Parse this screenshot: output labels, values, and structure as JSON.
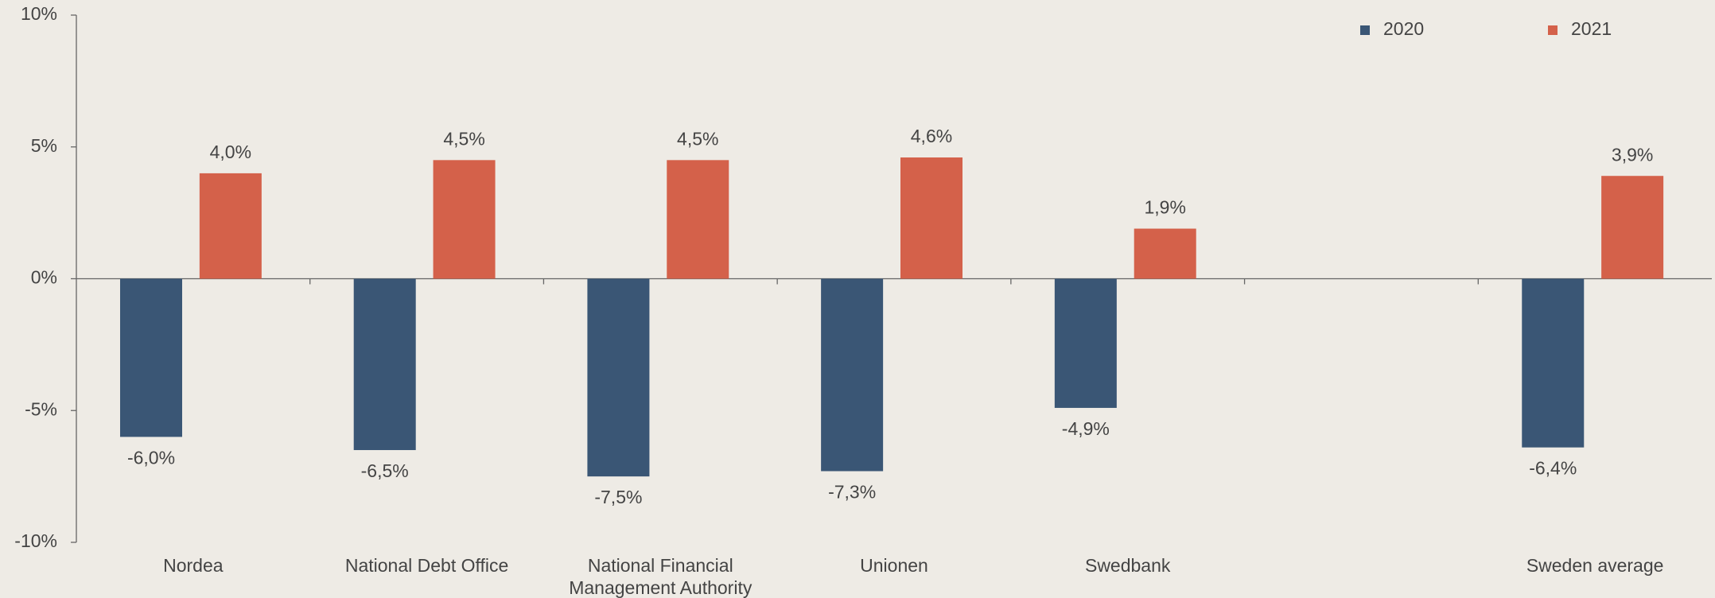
{
  "chart_data": {
    "type": "bar",
    "categories": [
      "Nordea",
      "National Debt Office",
      "National Financial Management Authority",
      "Unionen",
      "Swedbank",
      null,
      "Sweden average"
    ],
    "series": [
      {
        "name": "2020",
        "color": "#3a5675",
        "values": [
          -6.0,
          -6.5,
          -7.5,
          -7.3,
          -4.9,
          null,
          -6.4
        ],
        "value_labels": [
          "-6,0%",
          "-6,5%",
          "-7,5%",
          "-7,3%",
          "-4,9%",
          null,
          "-6,4%"
        ]
      },
      {
        "name": "2021",
        "color": "#d4614a",
        "values": [
          4.0,
          4.5,
          4.5,
          4.6,
          1.9,
          null,
          3.9
        ],
        "value_labels": [
          "4,0%",
          "4,5%",
          "4,5%",
          "4,6%",
          "1,9%",
          null,
          "3,9%"
        ]
      }
    ],
    "ylim": [
      -10,
      10
    ],
    "yticks": [
      {
        "value": -10,
        "label": "-10%"
      },
      {
        "value": -5,
        "label": "-5%"
      },
      {
        "value": 0,
        "label": "0%"
      },
      {
        "value": 5,
        "label": "5%"
      },
      {
        "value": 10,
        "label": "10%"
      }
    ],
    "legend": "top-right"
  }
}
